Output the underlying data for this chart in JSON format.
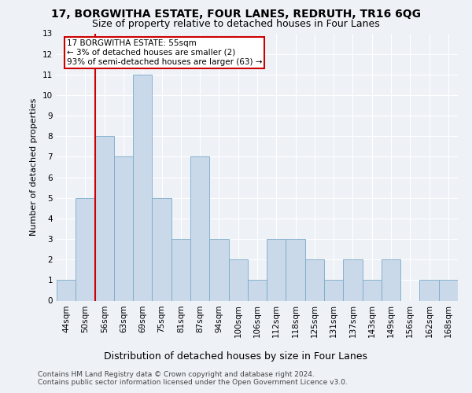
{
  "title": "17, BORGWITHA ESTATE, FOUR LANES, REDRUTH, TR16 6QG",
  "subtitle": "Size of property relative to detached houses in Four Lanes",
  "xlabel": "Distribution of detached houses by size in Four Lanes",
  "ylabel": "Number of detached properties",
  "categories": [
    "44sqm",
    "50sqm",
    "56sqm",
    "63sqm",
    "69sqm",
    "75sqm",
    "81sqm",
    "87sqm",
    "94sqm",
    "100sqm",
    "106sqm",
    "112sqm",
    "118sqm",
    "125sqm",
    "131sqm",
    "137sqm",
    "143sqm",
    "149sqm",
    "156sqm",
    "162sqm",
    "168sqm"
  ],
  "values": [
    1,
    5,
    8,
    7,
    11,
    5,
    3,
    7,
    3,
    2,
    1,
    3,
    3,
    2,
    1,
    2,
    1,
    2,
    0,
    1,
    1
  ],
  "bar_color": "#c9d9ea",
  "bar_edge_color": "#7aaac8",
  "subject_line_color": "#cc0000",
  "annotation_box_edge_color": "#cc0000",
  "annotation_box_face_color": "#ffffff",
  "subject_label": "17 BORGWITHA ESTATE: 55sqm",
  "annotation_line1": "← 3% of detached houses are smaller (2)",
  "annotation_line2": "93% of semi-detached houses are larger (63) →",
  "ylim": [
    0,
    13
  ],
  "yticks": [
    0,
    1,
    2,
    3,
    4,
    5,
    6,
    7,
    8,
    9,
    10,
    11,
    12,
    13
  ],
  "background_color": "#eef2f7",
  "grid_color": "#ffffff",
  "title_fontsize": 10,
  "subtitle_fontsize": 9,
  "xlabel_fontsize": 9,
  "ylabel_fontsize": 8,
  "tick_fontsize": 7.5,
  "annotation_fontsize": 7.5,
  "footer1": "Contains HM Land Registry data © Crown copyright and database right 2024.",
  "footer2": "Contains public sector information licensed under the Open Government Licence v3.0.",
  "footer_fontsize": 6.5
}
